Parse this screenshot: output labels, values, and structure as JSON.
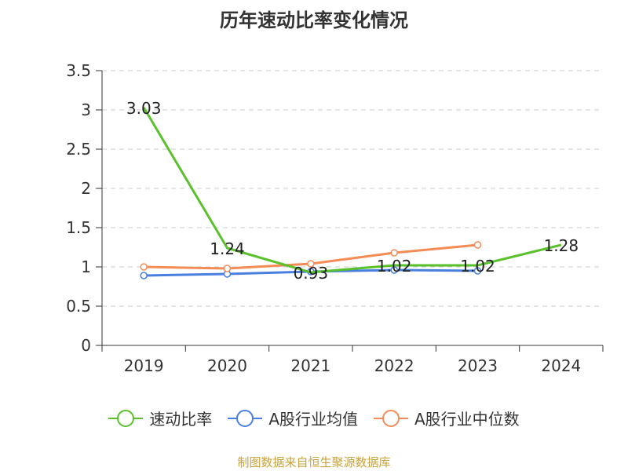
{
  "title": "历年速动比率变化情况",
  "source": "制图数据来自恒生聚源数据库",
  "chart_data": {
    "type": "line",
    "categories": [
      "2019",
      "2020",
      "2021",
      "2022",
      "2023",
      "2024"
    ],
    "ylim": [
      0,
      3.5
    ],
    "yticks": [
      "0",
      "0.5",
      "1",
      "1.5",
      "2",
      "2.5",
      "3",
      "3.5"
    ],
    "grid": true,
    "legend_position": "bottom",
    "series": [
      {
        "name": "速动比率",
        "color": "#5ac12d",
        "values": [
          3.03,
          1.24,
          0.93,
          1.02,
          1.02,
          1.28
        ],
        "labels": [
          "3.03",
          "1.24",
          "0.93",
          "1.02",
          "1.02",
          "1.28"
        ],
        "show_markers": false
      },
      {
        "name": "A股行业均值",
        "color": "#4a7fe0",
        "values": [
          0.89,
          0.91,
          0.94,
          0.96,
          0.95,
          null
        ],
        "show_markers": true
      },
      {
        "name": "A股行业中位数",
        "color": "#f58c55",
        "values": [
          1.0,
          0.98,
          1.04,
          1.18,
          1.28,
          null
        ],
        "show_markers": true
      }
    ]
  }
}
